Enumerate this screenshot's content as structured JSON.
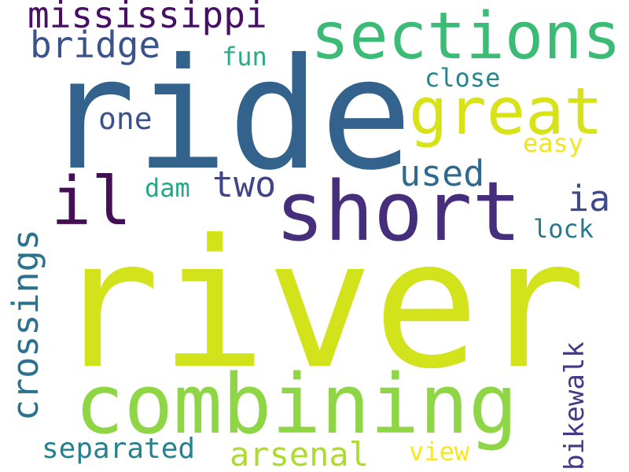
{
  "words": [
    {
      "text": "river",
      "color": "#d2e21b"
    },
    {
      "text": "ride",
      "color": "#33638d"
    },
    {
      "text": "combining",
      "color": "#8ed645"
    },
    {
      "text": "short",
      "color": "#472e7c"
    },
    {
      "text": "sections",
      "color": "#3bbb75"
    },
    {
      "text": "great",
      "color": "#d8e219"
    },
    {
      "text": "il",
      "color": "#440f54"
    },
    {
      "text": "mississippi",
      "color": "#471063"
    },
    {
      "text": "bridge",
      "color": "#3b528b"
    },
    {
      "text": "crossings",
      "color": "#2c728e"
    },
    {
      "text": "used",
      "color": "#30698e"
    },
    {
      "text": "ia",
      "color": "#3e4a89"
    },
    {
      "text": "arsenal",
      "color": "#addc30"
    },
    {
      "text": "separated",
      "color": "#26828e"
    },
    {
      "text": "two",
      "color": "#414487"
    },
    {
      "text": "bikewalk",
      "color": "#443983"
    },
    {
      "text": "one",
      "color": "#3b528b"
    },
    {
      "text": "close",
      "color": "#25858e"
    },
    {
      "text": "fun",
      "color": "#27ad81"
    },
    {
      "text": "easy",
      "color": "#f1e51d"
    },
    {
      "text": "dam",
      "color": "#22a884"
    },
    {
      "text": "lock",
      "color": "#2a788e"
    },
    {
      "text": "view",
      "color": "#f8e621"
    }
  ]
}
